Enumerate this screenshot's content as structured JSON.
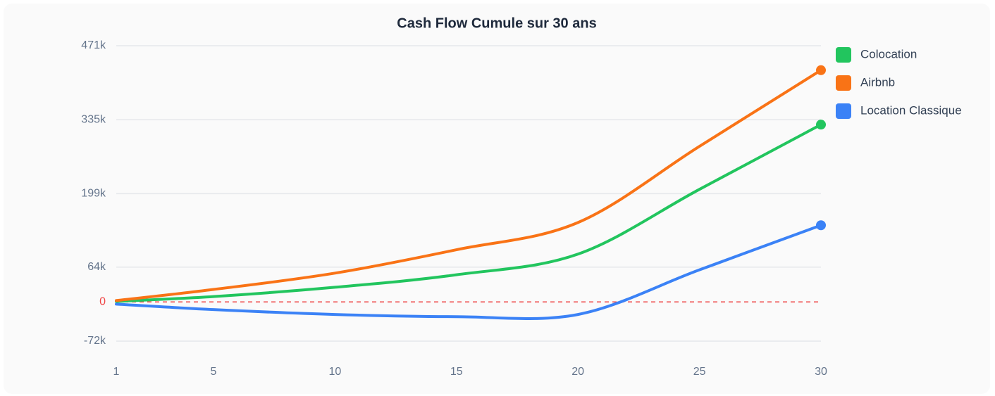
{
  "chart_data": {
    "type": "line",
    "title": "Cash Flow Cumule sur 30 ans",
    "x": [
      1,
      5,
      10,
      15,
      20,
      25,
      30
    ],
    "series": [
      {
        "name": "Colocation",
        "color": "#22c55e",
        "values": [
          1000,
          10000,
          27000,
          50000,
          88000,
          207000,
          326000
        ]
      },
      {
        "name": "Airbnb",
        "color": "#f97316",
        "values": [
          2600,
          23000,
          53000,
          96000,
          146000,
          286000,
          426000
        ]
      },
      {
        "name": "Location Classique",
        "color": "#3b82f6",
        "values": [
          -4000,
          -14000,
          -23000,
          -27000,
          -23000,
          59000,
          141000
        ]
      }
    ],
    "xlim": [
      1,
      30
    ],
    "xticks": [
      1,
      5,
      10,
      15,
      20,
      25,
      30
    ],
    "ylim": [
      -72000,
      471000
    ],
    "yticks": [
      {
        "value": -72000,
        "label": "-72k"
      },
      0,
      {
        "value": 64000,
        "label": "64k"
      },
      {
        "value": 199000,
        "label": "199k"
      },
      {
        "value": 335000,
        "label": "335k"
      },
      {
        "value": 471000,
        "label": "471k"
      }
    ],
    "grid": true,
    "zero_line": true,
    "legend": "right"
  }
}
